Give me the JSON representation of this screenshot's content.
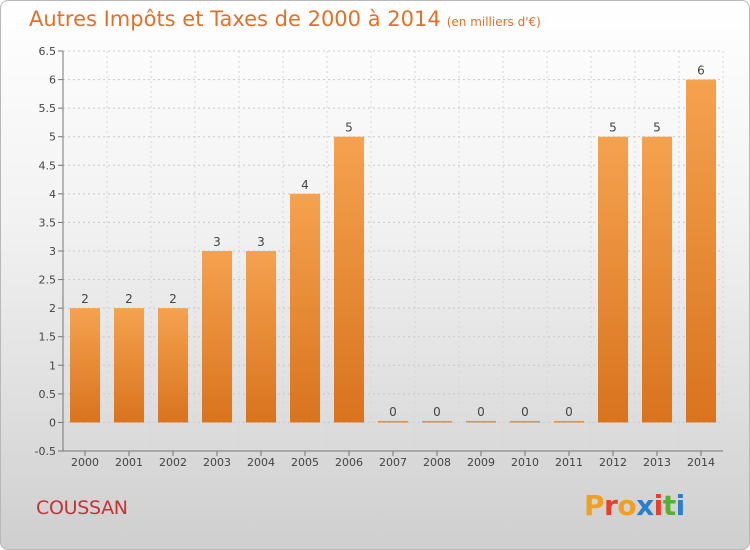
{
  "header": {
    "title": "Autres Impôts et Taxes de 2000 à 2014",
    "unit": "(en milliers d'€)"
  },
  "footer": {
    "place": "COUSSAN",
    "brand": [
      "P",
      "r",
      "o",
      "x",
      "i",
      "t",
      "i"
    ],
    "brand_colors": [
      "#f0a020",
      "#e6402a",
      "#f0a020",
      "#2a7fd0",
      "#e6402a",
      "#58b030",
      "#2a7fd0"
    ]
  },
  "chart_data": {
    "type": "bar",
    "categories": [
      "2000",
      "2001",
      "2002",
      "2003",
      "2004",
      "2005",
      "2006",
      "2007",
      "2008",
      "2009",
      "2010",
      "2011",
      "2012",
      "2013",
      "2014"
    ],
    "values": [
      2,
      2,
      2,
      3,
      3,
      4,
      5,
      0,
      0,
      0,
      0,
      0,
      5,
      5,
      6
    ],
    "data_labels": [
      "2",
      "2",
      "2",
      "3",
      "3",
      "4",
      "5",
      "0",
      "0",
      "0",
      "0",
      "0",
      "5",
      "5",
      "6"
    ],
    "y_ticks": [
      -0.5,
      0,
      0.5,
      1,
      1.5,
      2,
      2.5,
      3,
      3.5,
      4,
      4.5,
      5,
      5.5,
      6,
      6.5
    ],
    "y_tick_labels": [
      "-0.5",
      "0",
      "0.5",
      "1",
      "1.5",
      "2",
      "2.5",
      "3",
      "3.5",
      "4",
      "4.5",
      "5",
      "5.5",
      "6",
      "6.5"
    ],
    "ylim": [
      -0.5,
      6.5
    ],
    "grid": "horizontal-dotted",
    "bar_color": "#f5a24f",
    "bar_color_dark": "#d9731e"
  }
}
